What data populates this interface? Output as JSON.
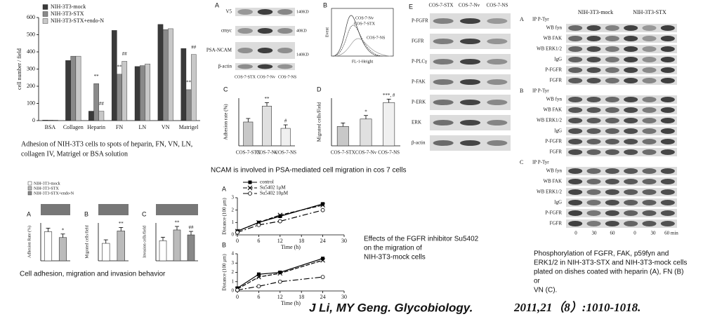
{
  "chart_data": [
    {
      "type": "bar",
      "ylabel": "cell number / field",
      "categories": [
        "BSA",
        "Collagen",
        "Heparin",
        "FN",
        "LN",
        "VN",
        "Matrigel"
      ],
      "series": [
        {
          "name": "NIH-3T3-mock",
          "color": "#3a3a3a",
          "values": [
            3,
            350,
            55,
            525,
            315,
            560,
            420
          ]
        },
        {
          "name": "NIH-3T3-STX",
          "color": "#8a8a8a",
          "values": [
            3,
            375,
            215,
            270,
            320,
            530,
            180
          ]
        },
        {
          "name": "NIH-3T3-STX+endo-N",
          "color": "#c8c8c8",
          "values": [
            3,
            375,
            55,
            345,
            330,
            535,
            385
          ]
        }
      ],
      "annotations": [
        {
          "category": 2,
          "series": 1,
          "text": "**"
        },
        {
          "category": 2,
          "series": 2,
          "text": "##"
        },
        {
          "category": 3,
          "series": 1,
          "text": "**"
        },
        {
          "category": 3,
          "series": 2,
          "text": "##"
        },
        {
          "category": 6,
          "series": 1,
          "text": "**"
        },
        {
          "category": 6,
          "series": 2,
          "text": "##"
        }
      ],
      "ylim": [
        0,
        600
      ],
      "yticks": [
        0,
        100,
        200,
        300,
        400,
        500,
        600
      ],
      "legend": "upper-left"
    },
    {
      "type": "bar",
      "panel": "C",
      "ylabel": "Adhesion rate (%)",
      "categories": [
        "COS-7-STX",
        "COS-7-Nv",
        "COS-7-NS"
      ],
      "values": [
        45,
        75,
        33
      ],
      "colors": [
        "#c8c8c8",
        "#e0e0e0",
        "#f0f0f0"
      ],
      "annotations": [
        {
          "index": 1,
          "text": "**"
        },
        {
          "index": 2,
          "text": "#"
        }
      ],
      "ylim": [
        0,
        90
      ]
    },
    {
      "type": "bar",
      "panel": "D",
      "ylabel": "Migrated cells/Field",
      "categories": [
        "COS-7-STX",
        "COS-7-Nv",
        "COS-7-NS"
      ],
      "values": [
        65,
        90,
        145
      ],
      "colors": [
        "#c8c8c8",
        "#e0e0e0",
        "#f0f0f0"
      ],
      "annotations": [
        {
          "index": 1,
          "text": "*"
        },
        {
          "index": 2,
          "text": "***, #"
        }
      ],
      "ylim": [
        0,
        160
      ]
    },
    {
      "type": "bar",
      "panel": "A",
      "ylabel": "Adhesion Rate (%)",
      "values": [
        100,
        80
      ],
      "colors": [
        "#ffffff",
        "#bbbbbb"
      ],
      "annotations": [
        {
          "index": 1,
          "text": "*"
        }
      ],
      "ylim": [
        0,
        130
      ]
    },
    {
      "type": "bar",
      "panel": "B",
      "ylabel": "Migrated cells/field",
      "values": [
        120,
        205
      ],
      "colors": [
        "#ffffff",
        "#bbbbbb"
      ],
      "annotations": [
        {
          "index": 1,
          "text": "**"
        }
      ],
      "ylim": [
        0,
        260
      ]
    },
    {
      "type": "bar",
      "panel": "C",
      "ylabel": "Invasion cells/field",
      "values": [
        345,
        530,
        445
      ],
      "colors": [
        "#ffffff",
        "#bbbbbb",
        "#888888"
      ],
      "annotations": [
        {
          "index": 1,
          "text": "**"
        },
        {
          "index": 2,
          "text": "##"
        }
      ],
      "ylim": [
        0,
        650
      ]
    },
    {
      "type": "line",
      "panel": "A",
      "xlabel": "Time (h)",
      "ylabel": "Distance (100 μm)",
      "x": [
        0,
        6,
        12,
        24
      ],
      "xlim": [
        0,
        30
      ],
      "xticks": [
        0,
        6,
        12,
        18,
        24,
        30
      ],
      "ylim": [
        0,
        3
      ],
      "yticks": [
        0,
        1,
        2,
        3
      ],
      "legend": true,
      "series": [
        {
          "name": "control",
          "color": "#000000",
          "values": [
            0.3,
            1.0,
            1.5,
            2.5
          ]
        },
        {
          "name": "Su5402 1μM",
          "color": "#000000",
          "values": [
            0.3,
            1.0,
            1.6,
            2.4
          ]
        },
        {
          "name": "Su5402 10μM",
          "color": "#000000",
          "values": [
            0.2,
            0.8,
            1.1,
            2.0
          ]
        }
      ]
    },
    {
      "type": "line",
      "panel": "B",
      "xlabel": "Time (h)",
      "ylabel": "Distance (100 μm)",
      "x": [
        0,
        6,
        12,
        24
      ],
      "xlim": [
        0,
        30
      ],
      "xticks": [
        0,
        6,
        12,
        18,
        24,
        30
      ],
      "ylim": [
        0,
        4
      ],
      "yticks": [
        0,
        1,
        2,
        3,
        4
      ],
      "legend": false,
      "series": [
        {
          "name": "control",
          "color": "#000000",
          "values": [
            0.3,
            1.8,
            2.0,
            3.5
          ]
        },
        {
          "name": "Su5402 1μM",
          "color": "#000000",
          "values": [
            0.2,
            1.5,
            1.9,
            3.3
          ]
        },
        {
          "name": "Su5402 10μM",
          "color": "#000000",
          "values": [
            0.1,
            0.5,
            1.0,
            1.5
          ]
        }
      ]
    }
  ],
  "small_legend": [
    "NIH-3T3-mock",
    "NIH-3T3-STX",
    "NIH-3T3-STX+endo-N"
  ],
  "blot_a": {
    "panel": "A",
    "rows": [
      "V5",
      "cmyc",
      "PSA-NCAM",
      "β-actin"
    ],
    "sizes": [
      "140KD",
      "40KD",
      "140KD"
    ],
    "lanes": [
      "COS-7-STX",
      "COS-7-Nv",
      "COS-7-NS"
    ]
  },
  "flow": {
    "panel": "B",
    "ylabel": "Event",
    "xlabel": "FL-1-Height",
    "curves": [
      "COS-7-Nv",
      "COS-7-STX",
      "COS-7-NS"
    ]
  },
  "blot_e": {
    "panel": "E",
    "lanes": [
      "COS-7-STX",
      "COS-7-Nv",
      "COS-7-NS"
    ],
    "rows": [
      "P-FGFR",
      "FGFR",
      "P-PLCγ",
      "P-FAK",
      "P-ERK",
      "ERK",
      "β-actin"
    ]
  },
  "phospho": {
    "ip": "IP P-Tyr",
    "groups": [
      "NIH-3T3-mock",
      "NIH-3T3-STX"
    ],
    "sections": [
      {
        "panel": "A",
        "rows": [
          "WB fyn",
          "WB FAK",
          "WB ERK1/2",
          "IgG",
          "P-FGFR",
          "FGFR"
        ]
      },
      {
        "panel": "B",
        "rows": [
          "WB fyn",
          "WB FAK",
          "WB ERK1/2",
          "IgG",
          "P-FGFR",
          "FGFR"
        ]
      },
      {
        "panel": "C",
        "rows": [
          "WB fyn",
          "WB FAK",
          "WB ERK1/2",
          "IgG",
          "P-FGFR",
          "FGFR"
        ]
      }
    ],
    "times": [
      "0",
      "30",
      "60",
      "0",
      "30",
      "60 min"
    ]
  },
  "captions": {
    "adhesion": [
      "Adhesion of NIH-3T3 cells to spots of heparin, FN, VN, LN,",
      "collagen IV, Matrigel or BSA solution"
    ],
    "ncam": "NCAM is involved in PSA-mediated cell migration in cos 7 cells",
    "behavior": "Cell adhesion, migration and invasion behavior",
    "inhibitor": [
      "Effects of the FGFR inhibitor Su5402",
      "on the migration of",
      "NIH-3T3-mock cells"
    ],
    "phospho": [
      "Phosphorylation of FGFR, FAK, p59fyn and",
      "ERK1/2 in NIH-3T3-STX and NIH-3T3-mock cells",
      "plated on dishes coated with heparin (A), FN (B)",
      "or",
      "VN (C)."
    ]
  },
  "citation": {
    "authors": "J Li, MY Geng. Glycobiology.",
    "ref": "2011,21（8）:1010-1018."
  }
}
